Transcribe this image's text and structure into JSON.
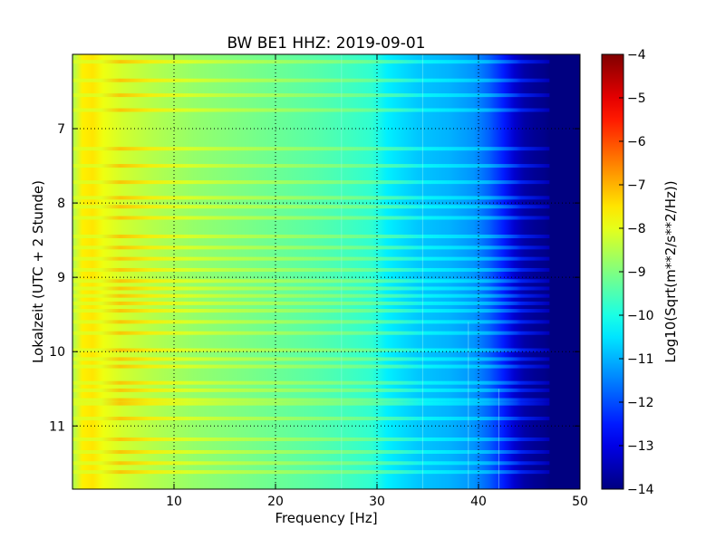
{
  "chart_data": {
    "type": "heatmap",
    "title": "BW BE1 HHZ: 2019-09-01",
    "xlabel": "Frequency [Hz]",
    "ylabel": "Lokalzeit (UTC + 2 Stunde)",
    "colorbar_label": "Log10(Sqrt(m**2/s**2/Hz))",
    "x_range": [
      0,
      50
    ],
    "y_range": [
      6.0,
      11.85
    ],
    "y_inverted": true,
    "x_ticks": [
      "10",
      "20",
      "30",
      "40",
      "50"
    ],
    "x_tick_values": [
      10,
      20,
      30,
      40,
      50
    ],
    "y_ticks": [
      "7",
      "8",
      "9",
      "10",
      "11"
    ],
    "y_tick_values": [
      7,
      8,
      9,
      10,
      11
    ],
    "color_range": [
      -14,
      -4
    ],
    "colorbar_ticks": [
      "−4",
      "−5",
      "−6",
      "−7",
      "−8",
      "−9",
      "−10",
      "−11",
      "−12",
      "−13",
      "−14"
    ],
    "colorbar_tick_values": [
      -4,
      -5,
      -6,
      -7,
      -8,
      -9,
      -10,
      -11,
      -12,
      -13,
      -14
    ],
    "colormap": "jet",
    "grid": "dotted",
    "spectral_profile": {
      "frequency_hz": [
        0,
        1,
        2,
        3,
        5,
        8,
        12,
        16,
        20,
        24,
        27,
        29.5,
        31,
        34,
        37,
        39.5,
        41,
        42.5,
        43.5,
        44.5,
        45.5,
        46.5,
        47,
        50
      ],
      "log10_amplitude": [
        -8.6,
        -7.6,
        -7.5,
        -7.9,
        -8.2,
        -8.5,
        -8.8,
        -9.0,
        -9.2,
        -9.4,
        -9.6,
        -9.8,
        -10.4,
        -10.8,
        -11.0,
        -11.3,
        -11.8,
        -12.5,
        -13.2,
        -13.6,
        -13.8,
        -13.9,
        -14.0,
        -14.0
      ]
    },
    "strong_rows_local_hour": [
      6.1,
      6.35,
      6.55,
      6.75,
      7.27,
      7.5,
      7.72,
      7.93,
      8.05,
      8.2,
      8.45,
      8.6,
      8.75,
      8.9,
      9.05,
      9.15,
      9.25,
      9.35,
      9.45,
      9.6,
      9.75,
      9.98,
      10.1,
      10.2,
      10.42,
      10.52,
      10.65,
      10.7,
      10.9,
      11.18,
      11.35,
      11.5,
      11.62
    ]
  }
}
